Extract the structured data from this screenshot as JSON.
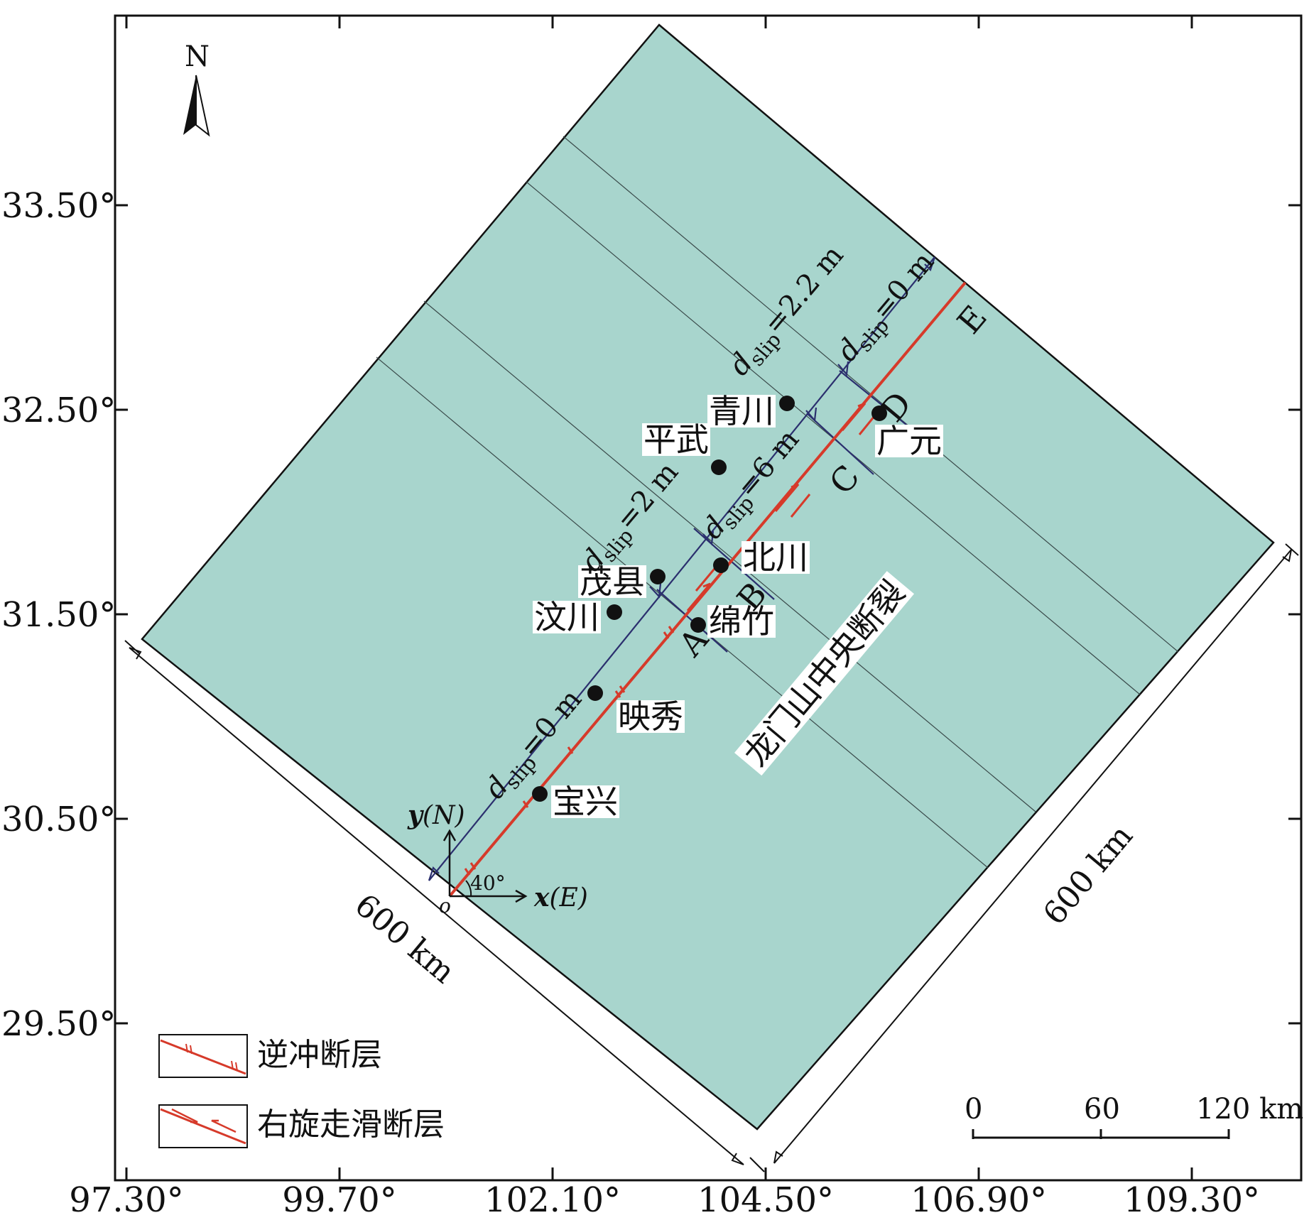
{
  "axes": {
    "y_ticks": [
      "33.50°",
      "32.50°",
      "31.50°",
      "30.50°",
      "29.50°"
    ],
    "x_ticks": [
      "97.30°",
      "99.70°",
      "102.10°",
      "104.50°",
      "106.90°",
      "109.30°"
    ]
  },
  "north_arrow": {
    "label": "N",
    "icon": "north-arrow-icon"
  },
  "cities": [
    "青川",
    "平武",
    "广元",
    "北川",
    "茂县",
    "汶川",
    "绵竹",
    "映秀",
    "宝兴"
  ],
  "segment_labels": [
    "A",
    "B",
    "C",
    "D",
    "E"
  ],
  "fault_name": "龙门山中央断裂",
  "slip_labels": [
    {
      "d": "d",
      "sub": "slip",
      "rest": "=2.2 m"
    },
    {
      "d": "d",
      "sub": "slip",
      "rest": "=0 m"
    },
    {
      "d": "d",
      "sub": "slip",
      "rest": "=6 m"
    },
    {
      "d": "d",
      "sub": "slip",
      "rest": "=2 m"
    },
    {
      "d": "d",
      "sub": "slip",
      "rest": "=0 m"
    }
  ],
  "dimension_labels": [
    "600 km",
    "600 km"
  ],
  "coordinate_system": {
    "y_label": "y",
    "y_unit": "(N)",
    "x_label": "x",
    "x_unit": "(E)",
    "origin": "o",
    "angle": "40°"
  },
  "legend": [
    {
      "label": "逆冲断层",
      "icon": "thrust-fault-icon"
    },
    {
      "label": "右旋走滑断层",
      "icon": "right-lateral-strike-slip-fault-icon"
    }
  ],
  "scale_bar": {
    "labels": [
      "0",
      "60",
      "120 km"
    ]
  },
  "colors": {
    "model_area": "#a8d5cd",
    "fault": "#d63a2a",
    "profile": "#2b2f6e",
    "frame": "#111111"
  }
}
